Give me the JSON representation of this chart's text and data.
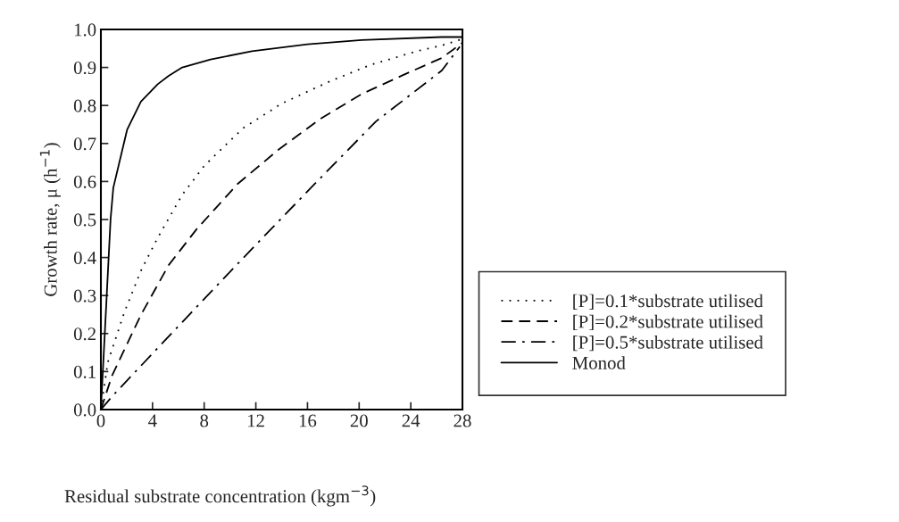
{
  "chart_data": {
    "type": "line",
    "xlabel": "Residual substrate concentration (kgm$^{−3}$)",
    "ylabel": "Growth rate, μ (h$^{−1}$)",
    "xlim": [
      0,
      28
    ],
    "xticks": [
      0,
      4,
      8,
      12,
      16,
      20,
      24,
      28
    ],
    "ylim": [
      0,
      1.0
    ],
    "yticks": [
      {
        "value": 0,
        "label": "0.0"
      },
      {
        "value": 0.1,
        "label": "0.1"
      },
      {
        "value": 0.2,
        "label": "0.2"
      },
      {
        "value": 0.3,
        "label": "0.3"
      },
      {
        "value": 0.4,
        "label": "0.4"
      },
      {
        "value": 0.5,
        "label": "0.5"
      },
      {
        "value": 0.6,
        "label": "0.6"
      },
      {
        "value": 0.7,
        "label": "0.7"
      },
      {
        "value": 0.8,
        "label": "0.8"
      },
      {
        "value": 0.9,
        "label": "0.9"
      },
      {
        "value": 1.0,
        "label": "1.0"
      }
    ],
    "grid": false,
    "legend": "right",
    "marker": "none",
    "series": [
      {
        "name": "[P]=0.1*substrate utilised",
        "color": "#000000",
        "line_style": "dotted",
        "x": [
          0,
          0.54,
          1.82,
          3.1,
          4.4,
          6.3,
          8.0,
          11.0,
          14.0,
          17.7,
          20.9,
          24.5,
          26.4,
          28
        ],
        "values": [
          0,
          0.125,
          0.256,
          0.365,
          0.452,
          0.565,
          0.641,
          0.74,
          0.805,
          0.863,
          0.907,
          0.943,
          0.958,
          0.975
        ]
      },
      {
        "name": "[P]=0.2*substrate utilised",
        "color": "#000000",
        "line_style": "dashed",
        "x": [
          0,
          0.86,
          3.1,
          5.25,
          7.4,
          10.6,
          13.8,
          17.0,
          20.2,
          23.4,
          26.4,
          28
        ],
        "values": [
          0,
          0.089,
          0.249,
          0.38,
          0.474,
          0.594,
          0.685,
          0.765,
          0.83,
          0.88,
          0.925,
          0.965
        ]
      },
      {
        "name": "[P]=0.5*substrate utilised",
        "color": "#000000",
        "line_style": "dashdot",
        "x": [
          0,
          0.96,
          6.3,
          11.7,
          17.0,
          21.3,
          26.4,
          27.8
        ],
        "values": [
          0,
          0.038,
          0.23,
          0.423,
          0.609,
          0.758,
          0.892,
          0.955
        ]
      },
      {
        "name": "Monod",
        "color": "#000000",
        "line_style": "solid",
        "x": [
          0,
          0.43,
          0.75,
          0.96,
          2.03,
          3.1,
          4.4,
          5.25,
          6.3,
          8.5,
          11.7,
          16.0,
          20.2,
          26.4,
          28
        ],
        "values": [
          0,
          0.285,
          0.5,
          0.583,
          0.736,
          0.81,
          0.856,
          0.878,
          0.9,
          0.921,
          0.943,
          0.961,
          0.972,
          0.98,
          0.98
        ]
      }
    ]
  }
}
